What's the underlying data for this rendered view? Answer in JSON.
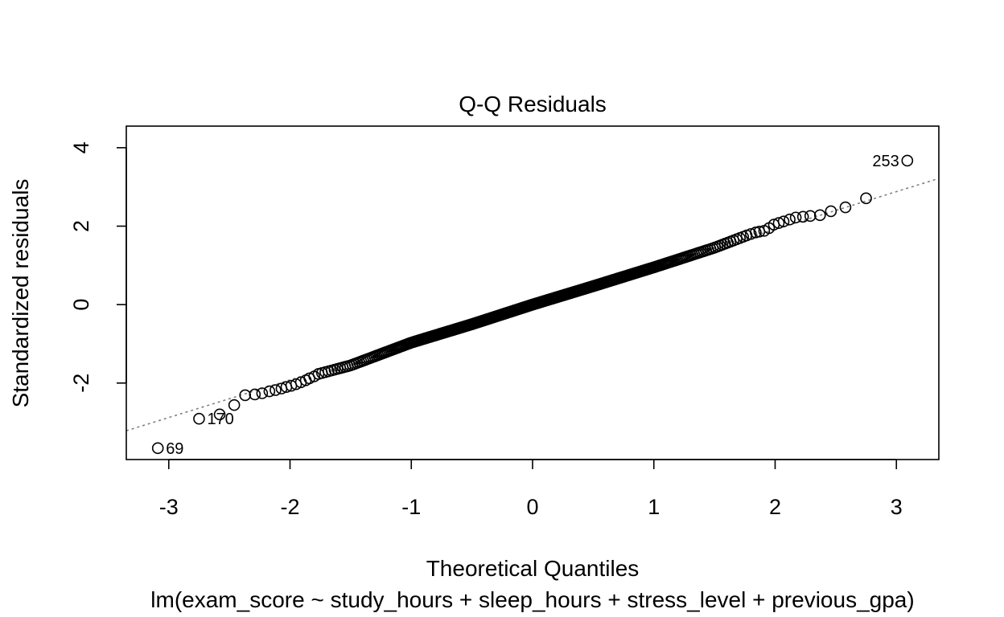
{
  "chart_data": {
    "type": "scatter",
    "title": "Q-Q Residuals",
    "xlabel": "Theoretical Quantiles",
    "ylabel": "Standardized residuals",
    "subtitle": "lm(exam_score ~ study_hours + sleep_hours + stress_level + previous_gpa)",
    "xlim": [
      -3.35,
      3.35
    ],
    "ylim": [
      -3.95,
      4.55
    ],
    "x_ticks": [
      {
        "value": -3,
        "label": "-3"
      },
      {
        "value": -2,
        "label": "-2"
      },
      {
        "value": -1,
        "label": "-1"
      },
      {
        "value": 0,
        "label": "0"
      },
      {
        "value": 1,
        "label": "1"
      },
      {
        "value": 2,
        "label": "2"
      },
      {
        "value": 3,
        "label": "3"
      }
    ],
    "y_ticks": [
      {
        "value": -2,
        "label": "-2"
      },
      {
        "value": 0,
        "label": "0"
      },
      {
        "value": 2,
        "label": "2"
      },
      {
        "value": 4,
        "label": "4"
      }
    ],
    "grid": false,
    "n_points": 400,
    "reference_line": {
      "intercept": 0.0,
      "slope": 0.96,
      "style": "dotted",
      "color": "#808080"
    },
    "labeled_points": [
      {
        "label": "253",
        "x": 3.09,
        "y": 3.67,
        "label_side": "left"
      },
      {
        "label": "170",
        "x": -2.75,
        "y": -2.91,
        "label_side": "right"
      },
      {
        "label": "69",
        "x": -3.09,
        "y": -3.66,
        "label_side": "right"
      }
    ],
    "tail_points": [
      {
        "x": 2.75,
        "y": 2.71
      },
      {
        "x": 2.58,
        "y": 2.48
      },
      {
        "x": 2.46,
        "y": 2.38
      },
      {
        "x": 2.37,
        "y": 2.28
      },
      {
        "x": 2.29,
        "y": 2.26
      },
      {
        "x": 2.23,
        "y": 2.24
      },
      {
        "x": 2.17,
        "y": 2.22
      },
      {
        "x": 2.12,
        "y": 2.17
      },
      {
        "x": 2.07,
        "y": 2.12
      },
      {
        "x": 2.03,
        "y": 2.08
      },
      {
        "x": 1.99,
        "y": 2.04
      },
      {
        "x": 1.95,
        "y": 1.95
      },
      {
        "x": 1.91,
        "y": 1.88
      },
      {
        "x": 1.87,
        "y": 1.86
      },
      {
        "x": 1.84,
        "y": 1.84
      },
      {
        "x": 1.8,
        "y": 1.8
      },
      {
        "x": -1.8,
        "y": -1.83
      },
      {
        "x": -1.84,
        "y": -1.88
      },
      {
        "x": -1.87,
        "y": -1.93
      },
      {
        "x": -1.91,
        "y": -1.98
      },
      {
        "x": -1.95,
        "y": -2.03
      },
      {
        "x": -1.99,
        "y": -2.07
      },
      {
        "x": -2.03,
        "y": -2.1
      },
      {
        "x": -2.07,
        "y": -2.14
      },
      {
        "x": -2.12,
        "y": -2.18
      },
      {
        "x": -2.17,
        "y": -2.21
      },
      {
        "x": -2.23,
        "y": -2.26
      },
      {
        "x": -2.29,
        "y": -2.29
      },
      {
        "x": -2.37,
        "y": -2.31
      },
      {
        "x": -2.46,
        "y": -2.56
      },
      {
        "x": -2.58,
        "y": -2.8
      }
    ],
    "body_curve": [
      {
        "x": -1.78,
        "y": -1.78
      },
      {
        "x": -1.5,
        "y": -1.55
      },
      {
        "x": -1.0,
        "y": -0.97
      },
      {
        "x": -0.5,
        "y": -0.5
      },
      {
        "x": 0.0,
        "y": 0.0
      },
      {
        "x": 0.5,
        "y": 0.47
      },
      {
        "x": 1.0,
        "y": 0.95
      },
      {
        "x": 1.5,
        "y": 1.45
      },
      {
        "x": 1.78,
        "y": 1.78
      }
    ]
  }
}
